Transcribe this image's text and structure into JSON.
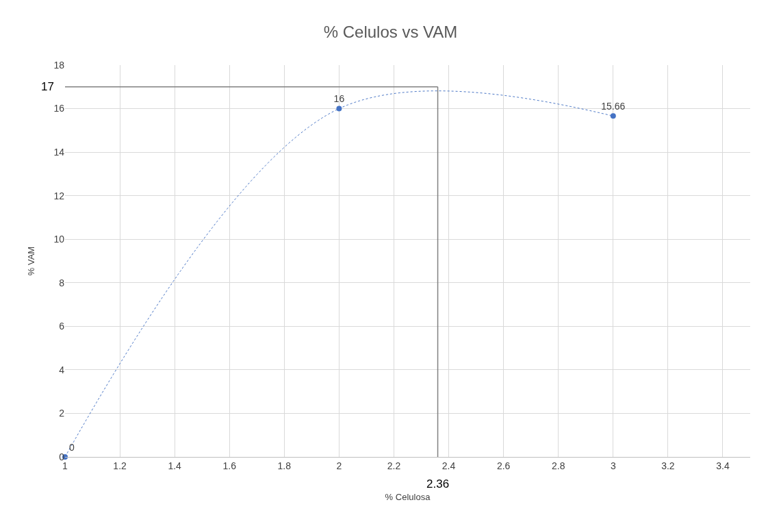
{
  "chart_data": {
    "type": "line",
    "title": "% Celulos vs VAM",
    "xlabel": "% Celulosa",
    "ylabel": "% VAM",
    "x": [
      1,
      2,
      3
    ],
    "series": [
      {
        "color": "#4472c4",
        "values": [
          0,
          16,
          15.66
        ]
      }
    ],
    "data_labels": true,
    "marker": "circle",
    "line_style": "dotted",
    "grid": true,
    "xlim": [
      1,
      3.5
    ],
    "xticks": [
      1,
      1.2,
      1.4,
      1.6,
      1.8,
      2,
      2.2,
      2.4,
      2.6,
      2.8,
      3,
      3.2,
      3.4
    ],
    "ylim": [
      0,
      18
    ],
    "yticks": [
      0,
      2,
      4,
      6,
      8,
      10,
      12,
      14,
      16,
      18
    ],
    "ref_lines": [
      {
        "axis": "y",
        "value": 17,
        "label": "17",
        "color": "#808080"
      },
      {
        "axis": "x",
        "value": 2.36,
        "label": "2.36",
        "color": "#808080"
      }
    ]
  }
}
